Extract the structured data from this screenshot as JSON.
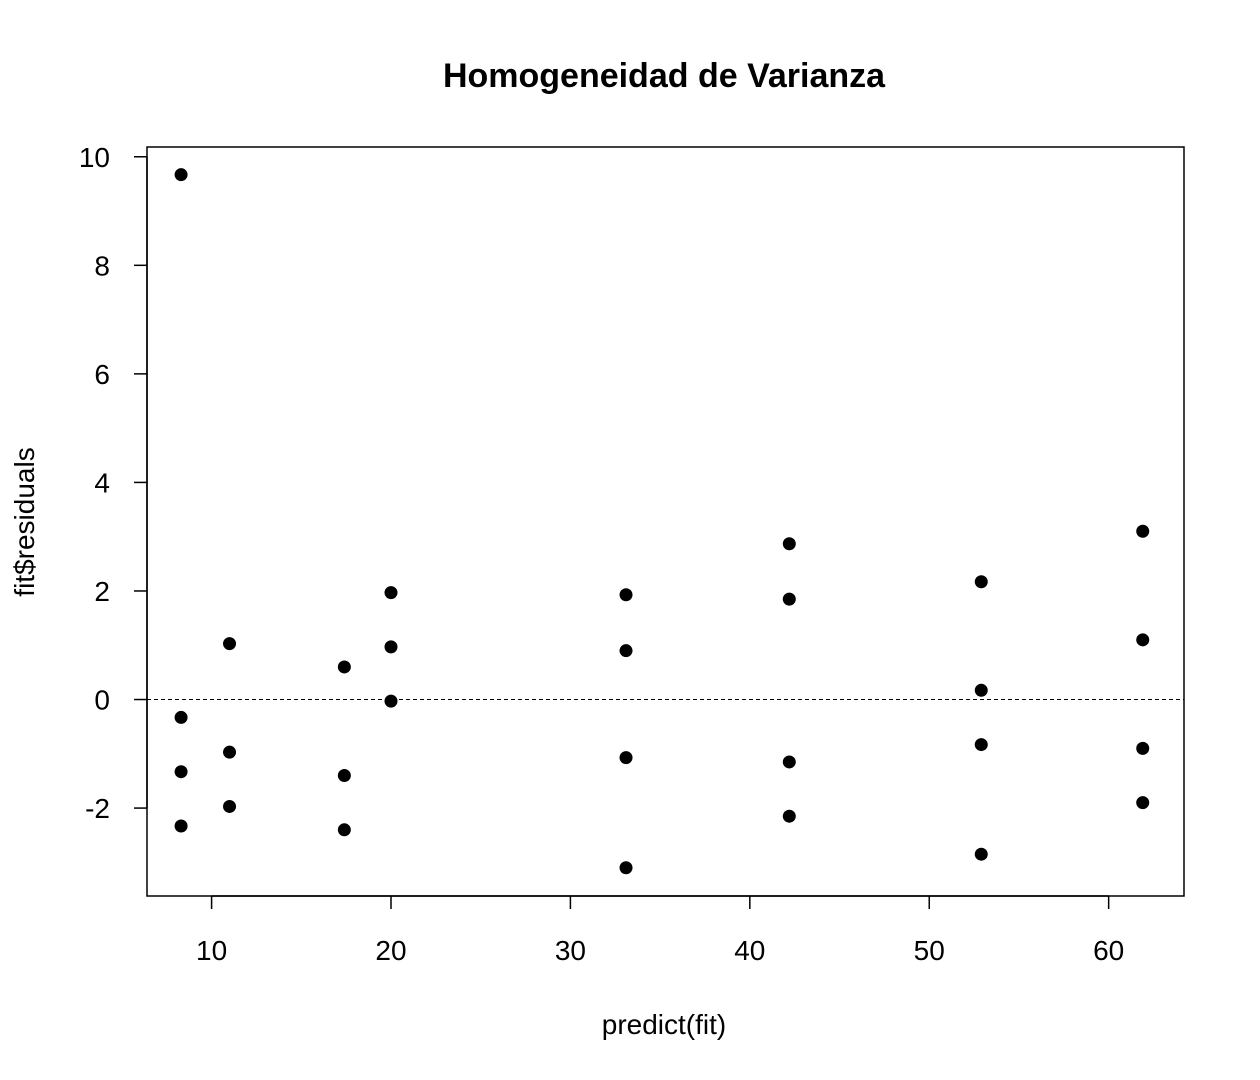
{
  "chart_data": {
    "type": "scatter",
    "title": "Homogeneidad de Varianza",
    "xlabel": "predict(fit)",
    "ylabel": "fit$residuals",
    "xlim": [
      6.4,
      64.2
    ],
    "ylim": [
      -3.62,
      10.18
    ],
    "x_ticks": [
      10,
      20,
      30,
      40,
      50,
      60
    ],
    "y_ticks": [
      -2,
      0,
      2,
      4,
      6,
      8,
      10
    ],
    "x_tick_labels": [
      "10",
      "20",
      "30",
      "40",
      "50",
      "60"
    ],
    "y_tick_labels": [
      "-2",
      "0",
      "2",
      "4",
      "6",
      "8",
      "10"
    ],
    "reference_line": {
      "y": 0,
      "style": "dashed"
    },
    "points": [
      {
        "x": 8.3,
        "y": 9.67
      },
      {
        "x": 8.3,
        "y": -0.33
      },
      {
        "x": 8.3,
        "y": -1.33
      },
      {
        "x": 8.3,
        "y": -2.33
      },
      {
        "x": 11.0,
        "y": 1.03
      },
      {
        "x": 11.0,
        "y": -0.97
      },
      {
        "x": 11.0,
        "y": -1.97
      },
      {
        "x": 17.4,
        "y": 0.6
      },
      {
        "x": 17.4,
        "y": -1.4
      },
      {
        "x": 17.4,
        "y": -2.4
      },
      {
        "x": 20.0,
        "y": 1.97
      },
      {
        "x": 20.0,
        "y": 0.97
      },
      {
        "x": 20.0,
        "y": -0.03
      },
      {
        "x": 33.1,
        "y": 1.93
      },
      {
        "x": 33.1,
        "y": 0.9
      },
      {
        "x": 33.1,
        "y": -1.07
      },
      {
        "x": 33.1,
        "y": -3.1
      },
      {
        "x": 42.2,
        "y": 2.87
      },
      {
        "x": 42.2,
        "y": 1.85
      },
      {
        "x": 42.2,
        "y": -1.15
      },
      {
        "x": 42.2,
        "y": -2.15
      },
      {
        "x": 52.9,
        "y": 2.17
      },
      {
        "x": 52.9,
        "y": 0.17
      },
      {
        "x": 52.9,
        "y": -0.83
      },
      {
        "x": 52.9,
        "y": -2.85
      },
      {
        "x": 61.9,
        "y": 3.1
      },
      {
        "x": 61.9,
        "y": 1.1
      },
      {
        "x": 61.9,
        "y": -0.9
      },
      {
        "x": 61.9,
        "y": -1.9
      }
    ],
    "grid": false,
    "legend": "none"
  }
}
